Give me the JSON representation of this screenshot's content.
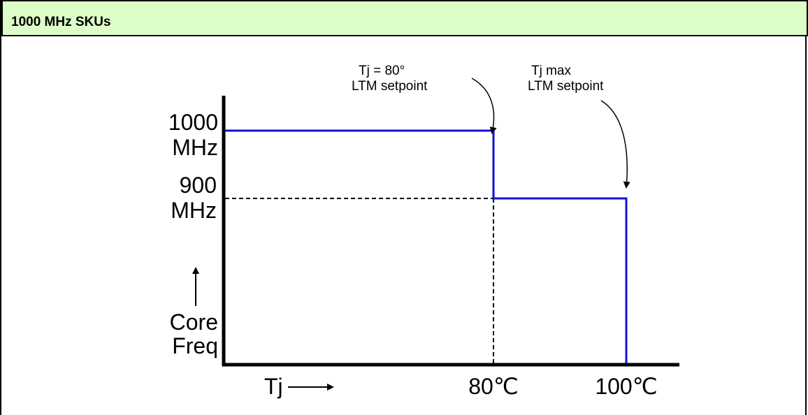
{
  "header": {
    "title": "1000 MHz SKUs",
    "background": "#dcfcc8"
  },
  "diagram": {
    "y_labels": {
      "high_line1": "1000",
      "high_line2": "MHz",
      "low_line1": "900",
      "low_line2": "MHz",
      "axis_line1": "Core",
      "axis_line2": "Freq"
    },
    "x_labels": {
      "axis": "Tj",
      "tick_80": "80℃",
      "tick_100": "100℃"
    },
    "annotations": {
      "a80_line1": "Tj = 80°",
      "a80_line2": "LTM setpoint",
      "amax_line1": "Tj max",
      "amax_line2": "LTM setpoint"
    },
    "series": {
      "high_freq_mhz": 1000,
      "low_freq_mhz": 900,
      "step_temp_c": 80,
      "max_temp_c": 100
    },
    "colors": {
      "trace": "#1010d8",
      "axes": "#000000"
    }
  }
}
